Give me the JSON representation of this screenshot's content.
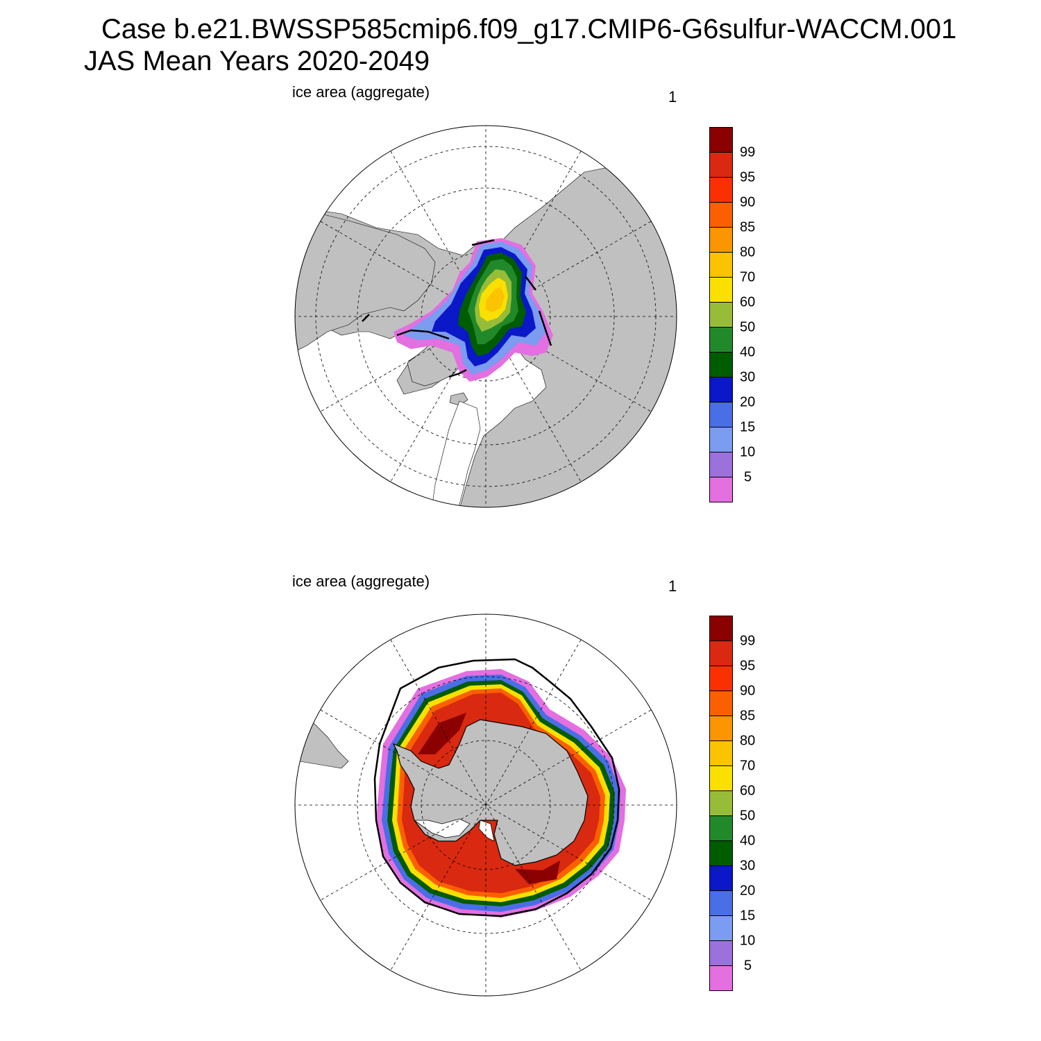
{
  "title": {
    "line1": "Case b.e21.BWSSP585cmip6.f09_g17.CMIP6-G6sulfur-WACCM.001",
    "line2": "JAS Mean   Years 2020-2049"
  },
  "panels": [
    {
      "id": "north",
      "left_label": "ice area  (aggregate)",
      "right_label": "1",
      "hemisphere": "north"
    },
    {
      "id": "south",
      "left_label": "ice area  (aggregate)",
      "right_label": "1",
      "hemisphere": "south"
    }
  ],
  "colorbar": {
    "levels": [
      "5",
      "10",
      "15",
      "20",
      "30",
      "40",
      "50",
      "60",
      "70",
      "80",
      "85",
      "90",
      "95",
      "99"
    ],
    "colors": [
      "#e36fe0",
      "#9c71dc",
      "#7b9cf0",
      "#4a6ee6",
      "#0a18c8",
      "#005c00",
      "#22892a",
      "#97bd38",
      "#fae000",
      "#fbc300",
      "#fb9500",
      "#fb6000",
      "#fb3000",
      "#d92910",
      "#8b0000"
    ]
  },
  "map_style": {
    "land_color": "#c0c0c0",
    "ocean_color": "#ffffff",
    "grid_style": "dashed",
    "contour_line_color": "#000000"
  }
}
